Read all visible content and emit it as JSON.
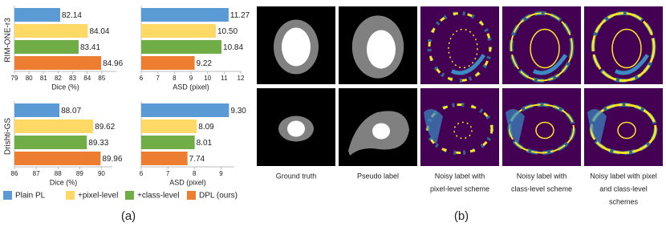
{
  "chart_data": [
    {
      "type": "bar",
      "orientation": "horizontal",
      "xlabel": "Dice (%)",
      "values": [
        82.14,
        84.04,
        83.41,
        84.96
      ],
      "xlim": [
        79,
        86
      ],
      "xticks": [
        79,
        80,
        81,
        82,
        83,
        84,
        85
      ]
    },
    {
      "type": "bar",
      "orientation": "horizontal",
      "xlabel": "ASD (pixel)",
      "values": [
        11.27,
        10.5,
        10.84,
        9.22
      ],
      "value_labels": [
        "11.27",
        "10.50",
        "10.84",
        "9.22"
      ],
      "xlim": [
        6,
        12
      ],
      "xticks": [
        6,
        7,
        8,
        9,
        10,
        11,
        12
      ]
    },
    {
      "type": "bar",
      "orientation": "horizontal",
      "xlabel": "Dice (%)",
      "values": [
        88.07,
        89.62,
        89.33,
        89.96
      ],
      "xlim": [
        86,
        90.5
      ],
      "xticks": [
        86,
        87,
        88,
        89,
        90
      ]
    },
    {
      "type": "bar",
      "orientation": "horizontal",
      "xlabel": "ASD (pixel)",
      "values": [
        9.3,
        8.09,
        8.01,
        7.74
      ],
      "value_labels": [
        "9.30",
        "8.09",
        "8.01",
        "7.74"
      ],
      "xlim": [
        6,
        9.5
      ],
      "xticks": [
        6,
        7,
        8,
        9
      ]
    }
  ],
  "legend": [
    {
      "name": "Plain PL",
      "color": "#5b9bd5"
    },
    {
      "name": "+pixel-level",
      "color": "#ffd966"
    },
    {
      "name": "+class-level",
      "color": "#70ad47"
    },
    {
      "name": "DPL (ours)",
      "color": "#ed7d31"
    }
  ],
  "row_labels": [
    "RIM-ONE-r3",
    "Drishti-GS"
  ],
  "panel_labels": [
    "(a)",
    "(b)"
  ],
  "captions": [
    [
      "Ground truth"
    ],
    [
      "Pseudo label"
    ],
    [
      "Noisy label with",
      "pixel-level scheme"
    ],
    [
      "Noisy label with",
      "class-level scheme"
    ],
    [
      "Noisy label with pixel",
      "and class-level",
      "schemes"
    ]
  ]
}
